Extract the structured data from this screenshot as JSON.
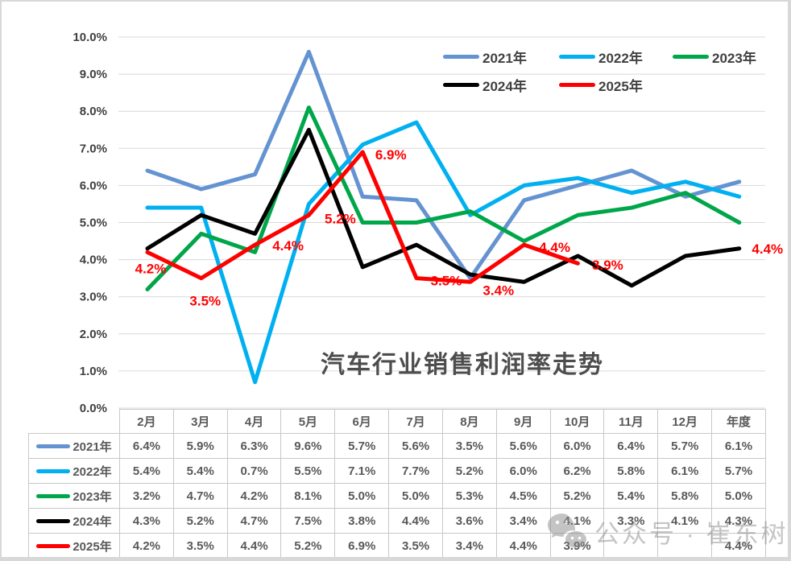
{
  "chart_data": {
    "type": "line",
    "title": "汽车行业销售利润率走势",
    "categories": [
      "2月",
      "3月",
      "4月",
      "5月",
      "6月",
      "7月",
      "8月",
      "9月",
      "10月",
      "11月",
      "12月",
      "年度"
    ],
    "series": [
      {
        "name": "2021年",
        "color": "#6493D1",
        "values": [
          6.4,
          5.9,
          6.3,
          9.6,
          5.7,
          5.6,
          3.5,
          5.6,
          6.0,
          6.4,
          5.7,
          6.1
        ]
      },
      {
        "name": "2022年",
        "color": "#00B0F0",
        "values": [
          5.4,
          5.4,
          0.7,
          5.5,
          7.1,
          7.7,
          5.2,
          6.0,
          6.2,
          5.8,
          6.1,
          5.7
        ]
      },
      {
        "name": "2023年",
        "color": "#00A64A",
        "values": [
          3.2,
          4.7,
          4.2,
          8.1,
          5.0,
          5.0,
          5.3,
          4.5,
          5.2,
          5.4,
          5.8,
          5.0
        ]
      },
      {
        "name": "2024年",
        "color": "#000000",
        "values": [
          4.3,
          5.2,
          4.7,
          7.5,
          3.8,
          4.4,
          3.6,
          3.4,
          4.1,
          3.3,
          4.1,
          4.3
        ]
      },
      {
        "name": "2025年",
        "color": "#FF0000",
        "values": [
          4.2,
          3.5,
          4.4,
          5.2,
          6.9,
          3.5,
          3.4,
          4.4,
          3.9,
          null,
          null,
          4.4
        ]
      }
    ],
    "ylim": [
      0,
      10
    ],
    "ytick_step": 1,
    "yticks": [
      "0.0%",
      "1.0%",
      "2.0%",
      "3.0%",
      "4.0%",
      "5.0%",
      "6.0%",
      "7.0%",
      "8.0%",
      "9.0%",
      "10.0%"
    ],
    "grid": "horizontal",
    "legend_position": "top-right",
    "legend_rows": [
      [
        "2021年",
        "2022年",
        "2023年"
      ],
      [
        "2024年",
        "2025年"
      ]
    ],
    "data_labels": {
      "series": "2025年",
      "labels": [
        {
          "index": 0,
          "text": "4.2%"
        },
        {
          "index": 1,
          "text": "3.5%"
        },
        {
          "index": 2,
          "text": "4.4%"
        },
        {
          "index": 3,
          "text": "5.2%"
        },
        {
          "index": 4,
          "text": "6.9%"
        },
        {
          "index": 5,
          "text": "3.5%"
        },
        {
          "index": 6,
          "text": "3.4%"
        },
        {
          "index": 7,
          "text": "4.4%"
        },
        {
          "index": 8,
          "text": "3.9%"
        },
        {
          "index": 11,
          "text": "4.4%"
        }
      ]
    }
  },
  "table": {
    "columns": [
      "2月",
      "3月",
      "4月",
      "5月",
      "6月",
      "7月",
      "8月",
      "9月",
      "10月",
      "11月",
      "12月",
      "年度"
    ],
    "rows": [
      {
        "label": "2021年",
        "color": "#6493D1",
        "values": [
          "6.4%",
          "5.9%",
          "6.3%",
          "9.6%",
          "5.7%",
          "5.6%",
          "3.5%",
          "5.6%",
          "6.0%",
          "6.4%",
          "5.7%",
          "6.1%"
        ]
      },
      {
        "label": "2022年",
        "color": "#00B0F0",
        "values": [
          "5.4%",
          "5.4%",
          "0.7%",
          "5.5%",
          "7.1%",
          "7.7%",
          "5.2%",
          "6.0%",
          "6.2%",
          "5.8%",
          "6.1%",
          "5.7%"
        ]
      },
      {
        "label": "2023年",
        "color": "#00A64A",
        "values": [
          "3.2%",
          "4.7%",
          "4.2%",
          "8.1%",
          "5.0%",
          "5.0%",
          "5.3%",
          "4.5%",
          "5.2%",
          "5.4%",
          "5.8%",
          "5.0%"
        ]
      },
      {
        "label": "2024年",
        "color": "#000000",
        "values": [
          "4.3%",
          "5.2%",
          "4.7%",
          "7.5%",
          "3.8%",
          "4.4%",
          "3.6%",
          "3.4%",
          "4.1%",
          "3.3%",
          "4.1%",
          "4.3%"
        ]
      },
      {
        "label": "2025年",
        "color": "#FF0000",
        "values": [
          "4.2%",
          "3.5%",
          "4.4%",
          "5.2%",
          "6.9%",
          "3.5%",
          "3.4%",
          "4.4%",
          "3.9%",
          "",
          "",
          "4.4%"
        ]
      }
    ]
  },
  "watermark": {
    "text": "公众号 · 崔东树",
    "icon": "wechat-icon"
  },
  "colors": {
    "grid": "#D9D9D9",
    "axis_text": "#404040",
    "table_text": "#595959",
    "table_border": "#C8C8C8",
    "title_text": "#4D4D4D",
    "data_label": "#FF0000",
    "watermark": "#8A8A8A"
  }
}
